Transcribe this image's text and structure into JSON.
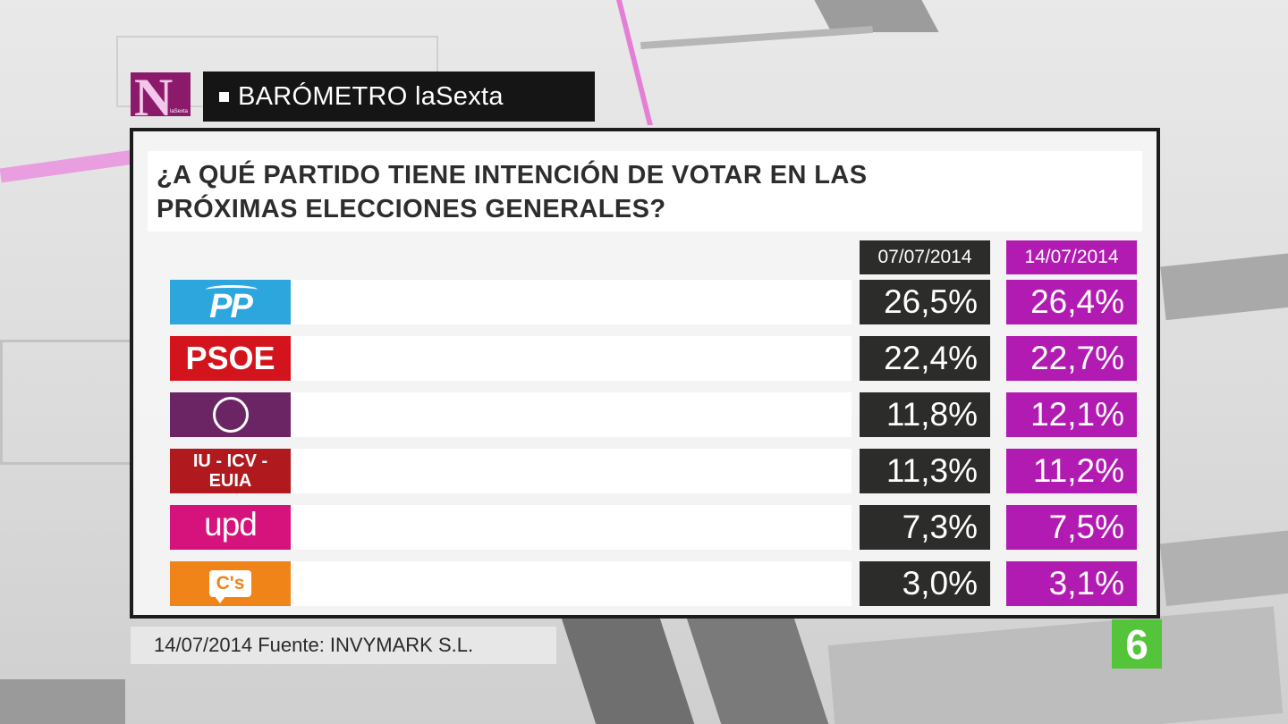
{
  "header": {
    "logo_letter": "N",
    "logo_sub": "laSexta",
    "program_title": "BARÓMETRO laSexta"
  },
  "question": {
    "line1": "¿A QUÉ PARTIDO TIENE INTENCIÓN DE VOTAR EN LAS",
    "line2": "PRÓXIMAS ELECCIONES GENERALES?"
  },
  "chart_data": {
    "type": "table",
    "title": "¿A QUÉ PARTIDO TIENE INTENCIÓN DE VOTAR EN LAS PRÓXIMAS ELECCIONES GENERALES?",
    "columns": [
      "07/07/2014",
      "14/07/2014"
    ],
    "categories": [
      "PP",
      "PSOE",
      "Podemos",
      "IU - ICV - EUIA",
      "upd",
      "C's"
    ],
    "series": [
      {
        "name": "07/07/2014",
        "values": [
          26.5,
          22.4,
          11.8,
          11.3,
          7.3,
          3.0
        ]
      },
      {
        "name": "14/07/2014",
        "values": [
          26.4,
          22.7,
          12.1,
          11.2,
          7.5,
          3.1
        ]
      }
    ],
    "unit": "%"
  },
  "rows": [
    {
      "party": "PP",
      "logo_text": "PP",
      "v1": "26,5%",
      "v2": "26,4%"
    },
    {
      "party": "PSOE",
      "logo_text": "PSOE",
      "v1": "22,4%",
      "v2": "22,7%"
    },
    {
      "party": "Podemos",
      "logo_text": "",
      "v1": "11,8%",
      "v2": "12,1%"
    },
    {
      "party": "IU - ICV - EUIA",
      "logo_text_l1": "IU - ICV -",
      "logo_text_l2": "EUIA",
      "v1": "11,3%",
      "v2": "11,2%"
    },
    {
      "party": "upd",
      "logo_text": "upd",
      "v1": "7,3%",
      "v2": "7,5%"
    },
    {
      "party": "C's",
      "logo_text": "C's",
      "v1": "3,0%",
      "v2": "3,1%"
    }
  ],
  "footer": {
    "source": "14/07/2014 Fuente: INVYMARK S.L.",
    "channel_logo": "6"
  },
  "colors": {
    "date1_bg": "#2c2c2a",
    "date2_bg": "#b21bb2",
    "pp": "#2da6dd",
    "psoe": "#d4141c",
    "podemos": "#6b2464",
    "iu": "#b01a1f",
    "upd": "#d6127c",
    "cs": "#f08419",
    "channel": "#54c43a"
  }
}
